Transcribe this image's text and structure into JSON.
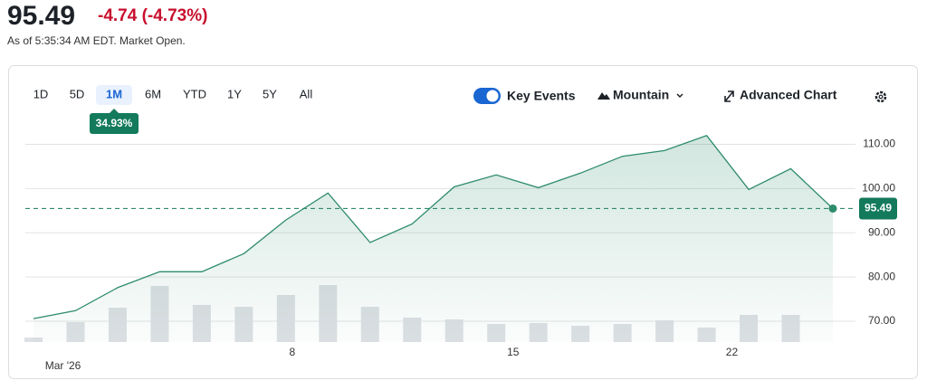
{
  "header": {
    "price": "95.49",
    "change": "-4.74 (-4.73%)",
    "as_of": "As of 5:35:34 AM EDT. Market Open."
  },
  "toolbar": {
    "ranges": [
      "1D",
      "5D",
      "1M",
      "6M",
      "YTD",
      "1Y",
      "5Y",
      "All"
    ],
    "selected_range": 2,
    "range_change": "34.93%",
    "key_events": "Key Events",
    "chart_style": "Mountain",
    "advanced": "Advanced Chart"
  },
  "chart_data": {
    "type": "area",
    "categories": [
      null,
      null,
      null,
      null,
      null,
      null,
      null,
      null,
      null,
      null,
      null,
      null,
      null,
      null,
      null,
      null,
      null,
      null,
      null,
      null
    ],
    "xticks": [
      {
        "value": 0.7,
        "label": "Mar '26"
      },
      {
        "value": 6.15,
        "label": "8"
      },
      {
        "value": 11.4,
        "label": "15"
      },
      {
        "value": 16.6,
        "label": "22"
      }
    ],
    "ylim": [
      65.3,
      114
    ],
    "yticks": [
      {
        "value": 70,
        "label": "70.00"
      },
      {
        "value": 80,
        "label": "80.00"
      },
      {
        "value": 90,
        "label": "90.00"
      },
      {
        "value": 100,
        "label": "100.00"
      },
      {
        "value": 110,
        "label": "110.00"
      }
    ],
    "grid": true,
    "series": [
      {
        "color": "#2e8b6e",
        "values": [
          70.6,
          72.4,
          77.6,
          81.2,
          81.2,
          85.3,
          92.9,
          99.0,
          87.8,
          92.0,
          100.4,
          103.1,
          100.2,
          103.5,
          107.3,
          108.6,
          112.0,
          99.8,
          104.5,
          95.49
        ]
      }
    ],
    "volume": {
      "color": "#dde0e4",
      "lim": [
        0,
        100
      ],
      "values": [
        5,
        22,
        38,
        62,
        41,
        39,
        52,
        63,
        39,
        27,
        25,
        20,
        21,
        18,
        20,
        24,
        16,
        30,
        30,
        null
      ]
    },
    "reference_line": {
      "value": 95.49,
      "label": "95.49"
    }
  }
}
